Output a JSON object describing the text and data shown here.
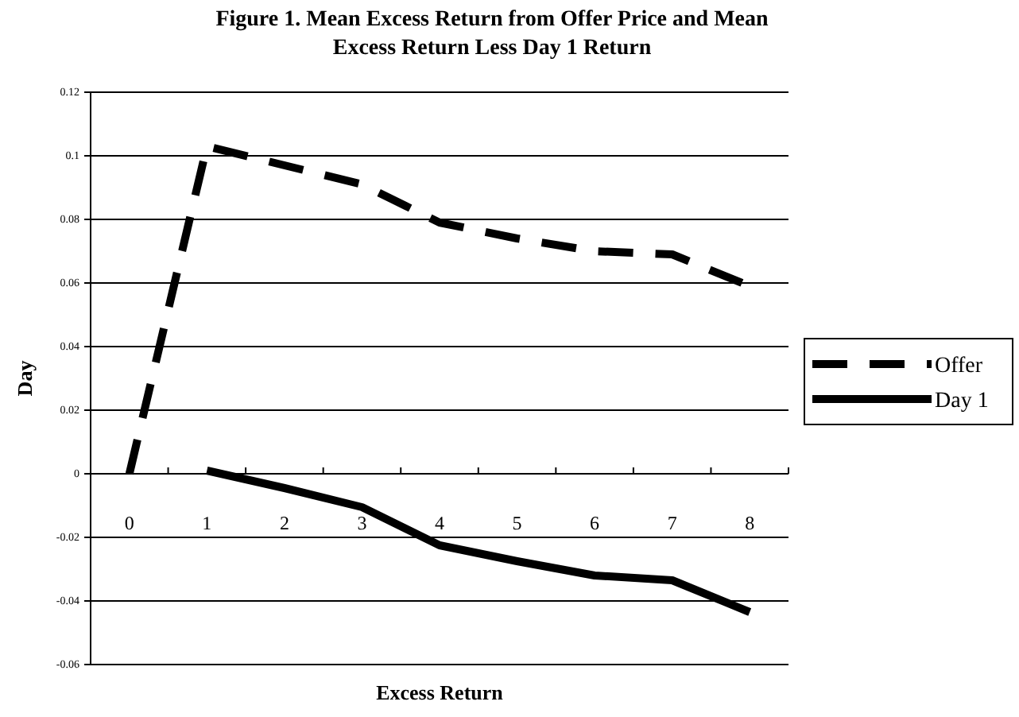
{
  "chart_data": {
    "type": "line",
    "title": "Figure 1.  Mean Excess Return from Offer Price and Mean Excess Return Less Day 1 Return",
    "xlabel": "Excess Return",
    "ylabel": "Day",
    "categories": [
      "0",
      "1",
      "2",
      "3",
      "4",
      "5",
      "6",
      "7",
      "8"
    ],
    "series": [
      {
        "name": "Offer",
        "color": "#000000",
        "line_style": "dashed",
        "values": [
          0,
          0.103,
          0.097,
          0.091,
          0.079,
          0.074,
          0.07,
          0.069,
          0.059
        ]
      },
      {
        "name": "Day 1",
        "color": "#000000",
        "line_style": "solid",
        "values": [
          null,
          0.001,
          -0.0045,
          -0.0105,
          -0.0225,
          -0.0275,
          -0.032,
          -0.0335,
          -0.0435
        ]
      }
    ],
    "ylim": [
      -0.06,
      0.12
    ],
    "yticks": [
      -0.06,
      -0.04,
      -0.02,
      0,
      0.02,
      0.04,
      0.06,
      0.08,
      0.1,
      0.12
    ],
    "grid": "y",
    "legend": "right"
  }
}
